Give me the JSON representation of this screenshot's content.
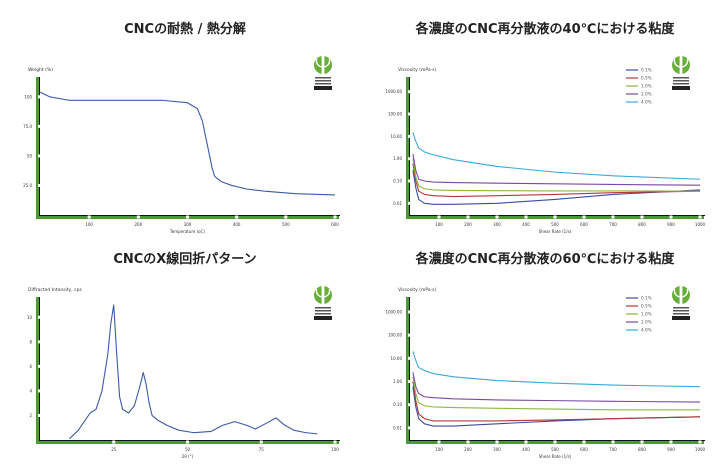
{
  "colors": {
    "axis_green": "#4b9a36",
    "logo_green": "#69ad3a",
    "curve_blue": "#3c5aa6"
  },
  "icons": [
    "leaf-logo-icon"
  ],
  "chart_data": [
    {
      "type": "line",
      "title": "CNCの耐熱 / 熱分解",
      "ylabel": "Weight (%)",
      "xlabel": "Temperature (oC)",
      "ylim": [
        0,
        110
      ],
      "xlim": [
        0,
        600
      ],
      "yticks": [
        25,
        50,
        75,
        100
      ],
      "ytick_labels": [
        "25.0",
        "50",
        "75.0",
        "100"
      ],
      "xticks": [
        100,
        200,
        300,
        400,
        500,
        600
      ],
      "xtick_labels": [
        "100",
        "200",
        "300",
        "400",
        "500",
        "600"
      ],
      "grid": false,
      "series": [
        {
          "color": "#3c5aa6",
          "x": [
            0,
            20,
            60,
            150,
            250,
            300,
            320,
            330,
            340,
            350,
            355,
            360,
            370,
            390,
            420,
            460,
            520,
            600
          ],
          "y": [
            104,
            100,
            97,
            97,
            97,
            95,
            90,
            80,
            60,
            40,
            33,
            31,
            28,
            25,
            22,
            20,
            18,
            17
          ]
        }
      ]
    },
    {
      "type": "line",
      "title": "各濃度のCNC再分散液の40℃における粘度",
      "ylabel": "Viscosity (mPa·s)",
      "xlabel": "Shear Rate (1/s)",
      "yscale": "log",
      "ylim": [
        0.003,
        2000
      ],
      "xlim": [
        0,
        1000
      ],
      "yticks": [
        0.01,
        0.1,
        1,
        10,
        100,
        1000
      ],
      "ytick_labels": [
        "0.01",
        "0.10",
        "1.00",
        "10.00",
        "100.00",
        "1000.00"
      ],
      "xticks": [
        100,
        200,
        300,
        400,
        500,
        600,
        700,
        800,
        900,
        1000
      ],
      "xtick_labels": [
        "100",
        "200",
        "300",
        "400",
        "500",
        "600",
        "700",
        "800",
        "900",
        "1000"
      ],
      "legend_position": "top-right",
      "grid": false,
      "series": [
        {
          "name": "0.1%",
          "color": "#3c4ca0",
          "x": [
            10,
            20,
            30,
            50,
            80,
            150,
            300,
            500,
            700,
            1000
          ],
          "y": [
            0.3,
            0.05,
            0.015,
            0.01,
            0.009,
            0.009,
            0.01,
            0.015,
            0.025,
            0.04
          ]
        },
        {
          "name": "0.5%",
          "color": "#b03a36",
          "x": [
            10,
            20,
            30,
            50,
            80,
            150,
            300,
            500,
            700,
            1000
          ],
          "y": [
            0.6,
            0.1,
            0.035,
            0.025,
            0.022,
            0.02,
            0.022,
            0.025,
            0.03,
            0.035
          ]
        },
        {
          "name": "1.0%",
          "color": "#8cb840",
          "x": [
            10,
            20,
            30,
            50,
            80,
            150,
            300,
            500,
            700,
            1000
          ],
          "y": [
            1.0,
            0.15,
            0.06,
            0.045,
            0.04,
            0.038,
            0.037,
            0.036,
            0.036,
            0.035
          ]
        },
        {
          "name": "2.0%",
          "color": "#7a4aa0",
          "x": [
            10,
            20,
            30,
            50,
            80,
            150,
            300,
            500,
            700,
            1000
          ],
          "y": [
            1.6,
            0.3,
            0.12,
            0.1,
            0.09,
            0.085,
            0.08,
            0.075,
            0.07,
            0.065
          ]
        },
        {
          "name": "4.0%",
          "color": "#3aa8d8",
          "x": [
            10,
            20,
            30,
            50,
            80,
            150,
            300,
            500,
            700,
            1000
          ],
          "y": [
            15,
            6,
            3,
            2,
            1.5,
            0.9,
            0.45,
            0.25,
            0.17,
            0.12
          ]
        }
      ]
    },
    {
      "type": "line",
      "title": "CNCのX線回折パターン",
      "ylabel": "Diffracted Intensity, cps",
      "xlabel": "2θ (°)",
      "ylim": [
        0,
        11
      ],
      "xlim": [
        0,
        100
      ],
      "yticks": [
        2,
        4,
        6,
        8,
        10
      ],
      "ytick_labels": [
        "2",
        "4",
        "6",
        "8",
        "10"
      ],
      "xticks": [
        25,
        50,
        75,
        100
      ],
      "xtick_labels": [
        "25",
        "50",
        "75",
        "100"
      ],
      "grid": false,
      "series": [
        {
          "color": "#3c5aa6",
          "x": [
            10,
            13,
            15,
            17,
            19,
            21,
            22,
            23,
            24,
            25,
            26,
            27,
            28,
            30,
            32,
            34,
            35,
            36,
            37,
            38,
            40,
            43,
            47,
            52,
            58,
            62,
            66,
            70,
            73,
            77,
            80,
            83,
            86,
            90,
            94
          ],
          "y": [
            0.1,
            0.8,
            1.5,
            2.2,
            2.5,
            4.0,
            5.5,
            7.0,
            9.5,
            11.0,
            7.0,
            3.5,
            2.5,
            2.2,
            2.8,
            4.5,
            5.5,
            4.5,
            3.0,
            2.0,
            1.6,
            1.2,
            0.8,
            0.6,
            0.7,
            1.2,
            1.5,
            1.2,
            0.9,
            1.4,
            1.8,
            1.2,
            0.8,
            0.6,
            0.5
          ]
        }
      ]
    },
    {
      "type": "line",
      "title": "各濃度のCNC再分散液の60℃における粘度",
      "ylabel": "Viscosity (mPa·s)",
      "xlabel": "Shear Rate (1/s)",
      "yscale": "log",
      "ylim": [
        0.003,
        2000
      ],
      "xlim": [
        0,
        1000
      ],
      "yticks": [
        0.01,
        0.1,
        1,
        10,
        100,
        1000
      ],
      "ytick_labels": [
        "0.01",
        "0.10",
        "1.00",
        "10.00",
        "100.00",
        "1000.00"
      ],
      "xticks": [
        100,
        200,
        300,
        400,
        500,
        600,
        700,
        800,
        900,
        1000
      ],
      "xtick_labels": [
        "100",
        "200",
        "300",
        "400",
        "500",
        "600",
        "700",
        "800",
        "900",
        "1000"
      ],
      "legend_position": "top-right",
      "grid": false,
      "series": [
        {
          "name": "0.1%",
          "color": "#3c4ca0",
          "x": [
            10,
            20,
            30,
            50,
            80,
            150,
            300,
            500,
            700,
            1000
          ],
          "y": [
            0.6,
            0.08,
            0.025,
            0.015,
            0.012,
            0.012,
            0.015,
            0.02,
            0.025,
            0.03
          ]
        },
        {
          "name": "0.5%",
          "color": "#b03a36",
          "x": [
            10,
            20,
            30,
            50,
            80,
            150,
            300,
            500,
            700,
            1000
          ],
          "y": [
            1.0,
            0.15,
            0.04,
            0.025,
            0.02,
            0.02,
            0.02,
            0.022,
            0.025,
            0.03
          ]
        },
        {
          "name": "1.0%",
          "color": "#8cb840",
          "x": [
            10,
            20,
            30,
            50,
            80,
            150,
            300,
            500,
            700,
            1000
          ],
          "y": [
            1.6,
            0.3,
            0.12,
            0.09,
            0.08,
            0.075,
            0.07,
            0.065,
            0.06,
            0.06
          ]
        },
        {
          "name": "2.0%",
          "color": "#7a4aa0",
          "x": [
            10,
            20,
            30,
            50,
            80,
            150,
            300,
            500,
            700,
            1000
          ],
          "y": [
            2.5,
            0.6,
            0.3,
            0.22,
            0.2,
            0.18,
            0.16,
            0.15,
            0.14,
            0.13
          ]
        },
        {
          "name": "4.0%",
          "color": "#3aa8d8",
          "x": [
            10,
            20,
            30,
            50,
            80,
            150,
            300,
            500,
            700,
            1000
          ],
          "y": [
            20,
            8,
            4,
            3,
            2.2,
            1.6,
            1.1,
            0.85,
            0.7,
            0.6
          ]
        }
      ]
    }
  ]
}
